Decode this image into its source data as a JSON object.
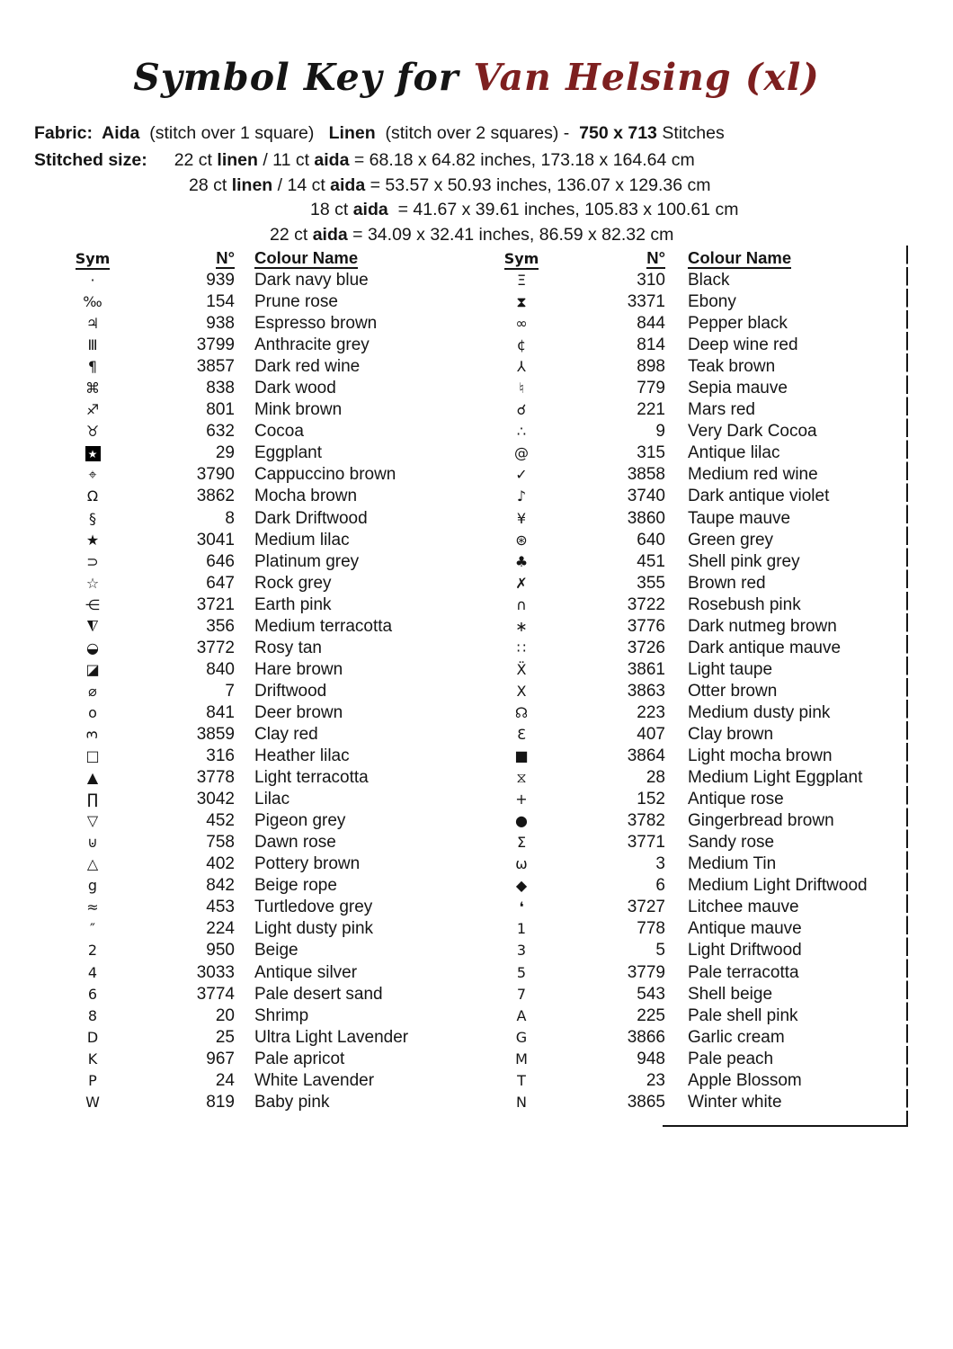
{
  "title": {
    "prefix": "Symbol Key for",
    "subject": "Van Helsing (xl)",
    "accent_color": "#7d1f1f"
  },
  "fabric": {
    "segments": [
      {
        "t": "Fabric:  ",
        "b": 1
      },
      {
        "t": "Aida",
        "b": 1
      },
      {
        "t": "  (stitch over 1 square)   ",
        "b": 0
      },
      {
        "t": "Linen",
        "b": 1
      },
      {
        "t": "  (stitch over 2 squares) -  ",
        "b": 0
      },
      {
        "t": "750 x 713",
        "b": 1
      },
      {
        "t": " Stitches",
        "b": 0
      }
    ]
  },
  "stitched": {
    "label": "Stitched size:",
    "lines": [
      {
        "indent": 0,
        "segments": [
          {
            "t": "22 ct ",
            "b": 0
          },
          {
            "t": "linen",
            "b": 1
          },
          {
            "t": " / 11 ct ",
            "b": 0
          },
          {
            "t": "aida",
            "b": 1
          },
          {
            "t": " = 68.18 x 64.82 inches, 173.18 x 164.64 cm",
            "b": 0
          }
        ]
      },
      {
        "indent": 0,
        "segments": [
          {
            "t": "28 ct ",
            "b": 0
          },
          {
            "t": "linen",
            "b": 1
          },
          {
            "t": " / 14 ct ",
            "b": 0
          },
          {
            "t": "aida",
            "b": 1
          },
          {
            "t": " = 53.57 x 50.93 inches, 136.07 x 129.36 cm",
            "b": 0
          }
        ]
      },
      {
        "indent": 1,
        "segments": [
          {
            "t": "18 ct ",
            "b": 0
          },
          {
            "t": "aida",
            "b": 1
          },
          {
            "t": "  = 41.67 x 39.61 inches, 105.83 x 100.61 cm",
            "b": 0
          }
        ]
      },
      {
        "indent": 2,
        "segments": [
          {
            "t": "22 ct ",
            "b": 0
          },
          {
            "t": "aida",
            "b": 1
          },
          {
            "t": " = 34.09 x 32.41 inches, 86.59 x 82.32 cm",
            "b": 0
          }
        ]
      }
    ]
  },
  "table": {
    "headers": {
      "sym": "Sym",
      "num": "N°",
      "name": "Colour Name"
    },
    "left_rows": [
      {
        "sym": "·",
        "num": "939",
        "name": "Dark navy blue"
      },
      {
        "sym": "‰",
        "num": "154",
        "name": "Prune rose"
      },
      {
        "sym": "♃",
        "num": "938",
        "name": "Espresso brown"
      },
      {
        "sym": "Ⅲ",
        "num": "3799",
        "name": "Anthracite grey"
      },
      {
        "sym": "¶",
        "num": "3857",
        "name": "Dark red wine"
      },
      {
        "sym": "⌘",
        "num": "838",
        "name": "Dark wood"
      },
      {
        "sym": "♐",
        "num": "801",
        "name": "Mink brown"
      },
      {
        "sym": "♉",
        "num": "632",
        "name": "Cocoa"
      },
      {
        "sym": "★",
        "num": "29",
        "name": "Eggplant",
        "mod": "boxed"
      },
      {
        "sym": "⌖",
        "num": "3790",
        "name": "Cappuccino brown"
      },
      {
        "sym": "Ω",
        "num": "3862",
        "name": "Mocha brown"
      },
      {
        "sym": "§",
        "num": "8",
        "name": "Dark Driftwood"
      },
      {
        "sym": "★",
        "num": "3041",
        "name": "Medium lilac"
      },
      {
        "sym": "⊃",
        "num": "646",
        "name": "Platinum grey"
      },
      {
        "sym": "☆",
        "num": "647",
        "name": "Rock grey"
      },
      {
        "sym": "⋲",
        "num": "3721",
        "name": "Earth pink"
      },
      {
        "sym": "◭",
        "num": "356",
        "name": "Medium terracotta",
        "mod": "flipv"
      },
      {
        "sym": "◒",
        "num": "3772",
        "name": "Rosy tan"
      },
      {
        "sym": "◪",
        "num": "840",
        "name": "Hare brown"
      },
      {
        "sym": "⌀",
        "num": "7",
        "name": "Driftwood"
      },
      {
        "sym": "o",
        "num": "841",
        "name": "Deer brown"
      },
      {
        "sym": "3",
        "num": "3859",
        "name": "Clay red",
        "mod": "rotccw"
      },
      {
        "sym": "□",
        "num": "316",
        "name": "Heather lilac"
      },
      {
        "sym": "▲",
        "num": "3778",
        "name": "Light terracotta"
      },
      {
        "sym": "∏",
        "num": "3042",
        "name": "Lilac"
      },
      {
        "sym": "▽",
        "num": "452",
        "name": "Pigeon grey"
      },
      {
        "sym": "⊍",
        "num": "758",
        "name": "Dawn rose"
      },
      {
        "sym": "△",
        "num": "402",
        "name": "Pottery brown"
      },
      {
        "sym": "g",
        "num": "842",
        "name": "Beige rope"
      },
      {
        "sym": "≈",
        "num": "453",
        "name": "Turtledove grey"
      },
      {
        "sym": "″",
        "num": "224",
        "name": "Light dusty pink"
      },
      {
        "sym": "2",
        "num": "950",
        "name": "Beige"
      },
      {
        "sym": "4",
        "num": "3033",
        "name": "Antique silver"
      },
      {
        "sym": "6",
        "num": "3774",
        "name": "Pale desert sand"
      },
      {
        "sym": "8",
        "num": "20",
        "name": "Shrimp"
      },
      {
        "sym": "D",
        "num": "25",
        "name": "Ultra Light Lavender"
      },
      {
        "sym": "K",
        "num": "967",
        "name": "Pale apricot"
      },
      {
        "sym": "P",
        "num": "24",
        "name": "White Lavender"
      },
      {
        "sym": "W",
        "num": "819",
        "name": "Baby pink"
      }
    ],
    "right_rows": [
      {
        "sym": "Ξ",
        "num": "310",
        "name": "Black"
      },
      {
        "sym": "⧗",
        "num": "3371",
        "name": "Ebony"
      },
      {
        "sym": "∞",
        "num": "844",
        "name": "Pepper black"
      },
      {
        "sym": "¢",
        "num": "814",
        "name": "Deep wine red"
      },
      {
        "sym": "⅄",
        "num": "898",
        "name": "Teak brown"
      },
      {
        "sym": "♮",
        "num": "779",
        "name": "Sepia mauve"
      },
      {
        "sym": "☌",
        "num": "221",
        "name": "Mars red"
      },
      {
        "sym": "∴",
        "num": "9",
        "name": "Very Dark Cocoa"
      },
      {
        "sym": "@",
        "num": "315",
        "name": "Antique lilac"
      },
      {
        "sym": "✓",
        "num": "3858",
        "name": "Medium red wine"
      },
      {
        "sym": "♪",
        "num": "3740",
        "name": "Dark antique violet"
      },
      {
        "sym": "¥",
        "num": "3860",
        "name": "Taupe mauve"
      },
      {
        "sym": "⊛",
        "num": "640",
        "name": "Green grey"
      },
      {
        "sym": "♣",
        "num": "451",
        "name": "Shell pink grey"
      },
      {
        "sym": "✗",
        "num": "355",
        "name": "Brown red"
      },
      {
        "sym": "∩",
        "num": "3722",
        "name": "Rosebush pink"
      },
      {
        "sym": "∗",
        "num": "3776",
        "name": "Dark nutmeg brown"
      },
      {
        "sym": "∷",
        "num": "3726",
        "name": "Dark antique mauve"
      },
      {
        "sym": "Ẍ",
        "num": "3861",
        "name": "Light taupe"
      },
      {
        "sym": "X",
        "num": "3863",
        "name": "Otter brown"
      },
      {
        "sym": "☊",
        "num": "223",
        "name": "Medium dusty pink"
      },
      {
        "sym": "Ɛ",
        "num": "407",
        "name": "Clay brown"
      },
      {
        "sym": "■",
        "num": "3864",
        "name": "Light mocha brown"
      },
      {
        "sym": "⧖",
        "num": "28",
        "name": "Medium Light Eggplant"
      },
      {
        "sym": "+",
        "num": "152",
        "name": "Antique rose"
      },
      {
        "sym": "●",
        "num": "3782",
        "name": "Gingerbread brown"
      },
      {
        "sym": "Σ",
        "num": "3771",
        "name": "Sandy rose"
      },
      {
        "sym": "ω",
        "num": "3",
        "name": "Medium Tin"
      },
      {
        "sym": "◆",
        "num": "6",
        "name": "Medium Light Driftwood"
      },
      {
        "sym": "❛",
        "num": "3727",
        "name": "Litchee mauve"
      },
      {
        "sym": "1",
        "num": "778",
        "name": "Antique mauve"
      },
      {
        "sym": "3",
        "num": "5",
        "name": "Light Driftwood"
      },
      {
        "sym": "5",
        "num": "3779",
        "name": "Pale terracotta"
      },
      {
        "sym": "7",
        "num": "543",
        "name": "Shell beige"
      },
      {
        "sym": "A",
        "num": "225",
        "name": "Pale shell pink"
      },
      {
        "sym": "G",
        "num": "3866",
        "name": "Garlic cream"
      },
      {
        "sym": "M",
        "num": "948",
        "name": "Pale peach"
      },
      {
        "sym": "T",
        "num": "23",
        "name": "Apple Blossom"
      },
      {
        "sym": "N",
        "num": "3865",
        "name": "Winter white"
      }
    ]
  }
}
